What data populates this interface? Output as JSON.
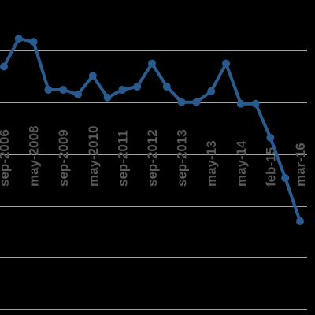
{
  "chart_data": {
    "type": "line",
    "title": "",
    "xlabel": "",
    "ylabel": "",
    "ylim": [
      0,
      1
    ],
    "grid": true,
    "legend": "none",
    "x_tick_labels": [
      {
        "label": "sep-2006",
        "index": 0
      },
      {
        "label": "may-2008",
        "index": 2
      },
      {
        "label": "sep-2009",
        "index": 4
      },
      {
        "label": "may-2010",
        "index": 6
      },
      {
        "label": "sep-2011",
        "index": 8
      },
      {
        "label": "sep-2012",
        "index": 10
      },
      {
        "label": "sep-2013",
        "index": 12
      },
      {
        "label": "may-13",
        "index": 14
      },
      {
        "label": "may-14",
        "index": 16
      },
      {
        "label": "feb-15",
        "index": 18
      },
      {
        "label": "mar-16",
        "index": 20
      }
    ],
    "series": [
      {
        "color": "#2a5b8f",
        "values": [
          0.785,
          0.875,
          0.865,
          0.71,
          0.71,
          0.695,
          0.755,
          0.685,
          0.71,
          0.72,
          0.795,
          0.72,
          0.67,
          0.67,
          0.705,
          0.795,
          0.665,
          0.665,
          0.555,
          0.425,
          0.285
        ]
      }
    ]
  },
  "colors": {
    "background": "#000000",
    "gridline": "#d9d9d9",
    "tick_label": "#595959"
  }
}
